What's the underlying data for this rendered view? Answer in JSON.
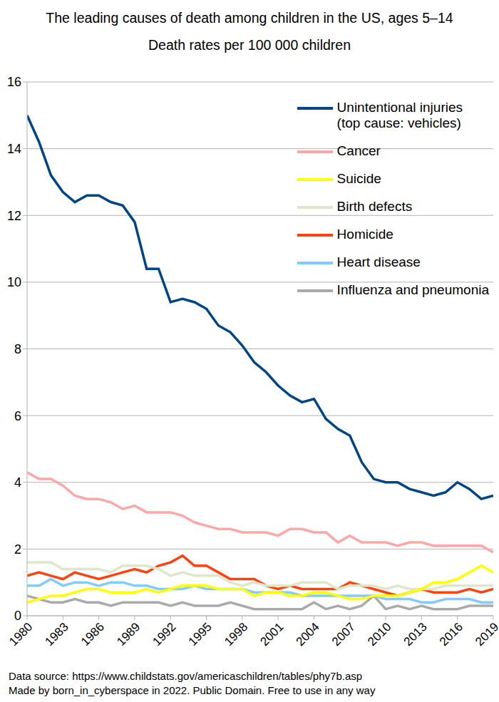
{
  "chart_data": {
    "type": "line",
    "title": "The leading causes of death among children in the US, ages 5–14",
    "subtitle": "Death rates per 100 000 children",
    "annotations": [
      "Data source: https://www.childstats.gov/americaschildren/tables/phy7b.asp",
      "Made by born_in_cyberspace in 2022. Public Domain. Free to use in any way"
    ],
    "x": [
      1980,
      1981,
      1982,
      1983,
      1984,
      1985,
      1986,
      1987,
      1988,
      1989,
      1990,
      1991,
      1992,
      1993,
      1994,
      1995,
      1996,
      1997,
      1998,
      1999,
      2000,
      2001,
      2002,
      2003,
      2004,
      2005,
      2006,
      2007,
      2008,
      2009,
      2010,
      2011,
      2012,
      2013,
      2014,
      2015,
      2016,
      2017,
      2018,
      2019
    ],
    "xlim": [
      1980,
      2019
    ],
    "xticks": [
      1980,
      1983,
      1986,
      1989,
      1992,
      1995,
      1998,
      2001,
      2004,
      2007,
      2010,
      2013,
      2016,
      2019
    ],
    "ylim": [
      0,
      16
    ],
    "yticks": [
      0,
      2,
      4,
      6,
      8,
      10,
      12,
      14,
      16
    ],
    "grid": true,
    "legend": "upper right",
    "series": [
      {
        "name": "Unintentional injuries\n(top cause: vehicles)",
        "color": "#004586",
        "values": [
          15.0,
          14.2,
          13.2,
          12.7,
          12.4,
          12.6,
          12.6,
          12.4,
          12.3,
          11.8,
          10.4,
          10.4,
          9.4,
          9.5,
          9.4,
          9.2,
          8.7,
          8.5,
          8.1,
          7.6,
          7.3,
          6.9,
          6.6,
          6.4,
          6.5,
          5.9,
          5.6,
          5.4,
          4.6,
          4.1,
          4.0,
          4.0,
          3.8,
          3.7,
          3.6,
          3.7,
          4.0,
          3.8,
          3.5,
          3.6
        ]
      },
      {
        "name": "Cancer",
        "color": "#ffa6a6",
        "values": [
          4.3,
          4.1,
          4.1,
          3.9,
          3.6,
          3.5,
          3.5,
          3.4,
          3.2,
          3.3,
          3.1,
          3.1,
          3.1,
          3.0,
          2.8,
          2.7,
          2.6,
          2.6,
          2.5,
          2.5,
          2.5,
          2.4,
          2.6,
          2.6,
          2.5,
          2.5,
          2.2,
          2.4,
          2.2,
          2.2,
          2.2,
          2.1,
          2.2,
          2.2,
          2.1,
          2.1,
          2.1,
          2.1,
          2.1,
          1.9
        ]
      },
      {
        "name": "Suicide",
        "color": "#ffff00",
        "values": [
          0.4,
          0.5,
          0.6,
          0.6,
          0.7,
          0.8,
          0.8,
          0.7,
          0.7,
          0.7,
          0.8,
          0.7,
          0.8,
          0.9,
          0.9,
          0.9,
          0.8,
          0.8,
          0.8,
          0.6,
          0.7,
          0.7,
          0.6,
          0.6,
          0.7,
          0.7,
          0.6,
          0.5,
          0.5,
          0.6,
          0.6,
          0.6,
          0.7,
          0.8,
          1.0,
          1.0,
          1.1,
          1.3,
          1.5,
          1.3
        ]
      },
      {
        "name": "Birth defects",
        "color": "#dde8cb",
        "values": [
          1.6,
          1.6,
          1.6,
          1.4,
          1.4,
          1.4,
          1.4,
          1.3,
          1.5,
          1.5,
          1.5,
          1.4,
          1.2,
          1.3,
          1.2,
          1.2,
          1.2,
          1.0,
          0.9,
          1.0,
          0.9,
          0.9,
          0.9,
          1.0,
          1.0,
          1.0,
          0.8,
          0.9,
          0.9,
          0.9,
          0.8,
          0.9,
          0.8,
          0.8,
          0.8,
          0.9,
          0.9,
          0.9,
          0.9,
          0.9
        ]
      },
      {
        "name": "Homicide",
        "color": "#ff420e",
        "values": [
          1.2,
          1.3,
          1.2,
          1.1,
          1.3,
          1.2,
          1.1,
          1.2,
          1.3,
          1.4,
          1.3,
          1.5,
          1.6,
          1.8,
          1.5,
          1.5,
          1.3,
          1.1,
          1.1,
          1.1,
          0.9,
          0.8,
          0.9,
          0.8,
          0.8,
          0.8,
          0.8,
          1.0,
          0.9,
          0.8,
          0.7,
          0.6,
          0.7,
          0.8,
          0.7,
          0.7,
          0.7,
          0.8,
          0.7,
          0.8
        ]
      },
      {
        "name": "Heart disease",
        "color": "#83caff",
        "values": [
          0.9,
          0.9,
          1.1,
          0.9,
          1.0,
          1.0,
          0.9,
          1.0,
          1.0,
          0.9,
          0.9,
          0.8,
          0.8,
          0.8,
          0.9,
          0.8,
          0.8,
          0.8,
          0.8,
          0.7,
          0.7,
          0.7,
          0.7,
          0.6,
          0.6,
          0.6,
          0.6,
          0.6,
          0.6,
          0.6,
          0.5,
          0.5,
          0.5,
          0.4,
          0.4,
          0.5,
          0.5,
          0.5,
          0.4,
          0.4
        ]
      },
      {
        "name": "Influenza and pneumonia",
        "color": "#aaaaaa",
        "values": [
          0.6,
          0.5,
          0.4,
          0.4,
          0.5,
          0.4,
          0.4,
          0.3,
          0.4,
          0.4,
          0.4,
          0.4,
          0.3,
          0.4,
          0.3,
          0.3,
          0.3,
          0.4,
          0.3,
          0.2,
          0.2,
          0.2,
          0.2,
          0.2,
          0.4,
          0.2,
          0.3,
          0.2,
          0.3,
          0.6,
          0.2,
          0.3,
          0.2,
          0.3,
          0.2,
          0.2,
          0.2,
          0.3,
          0.3,
          0.3
        ]
      }
    ]
  }
}
